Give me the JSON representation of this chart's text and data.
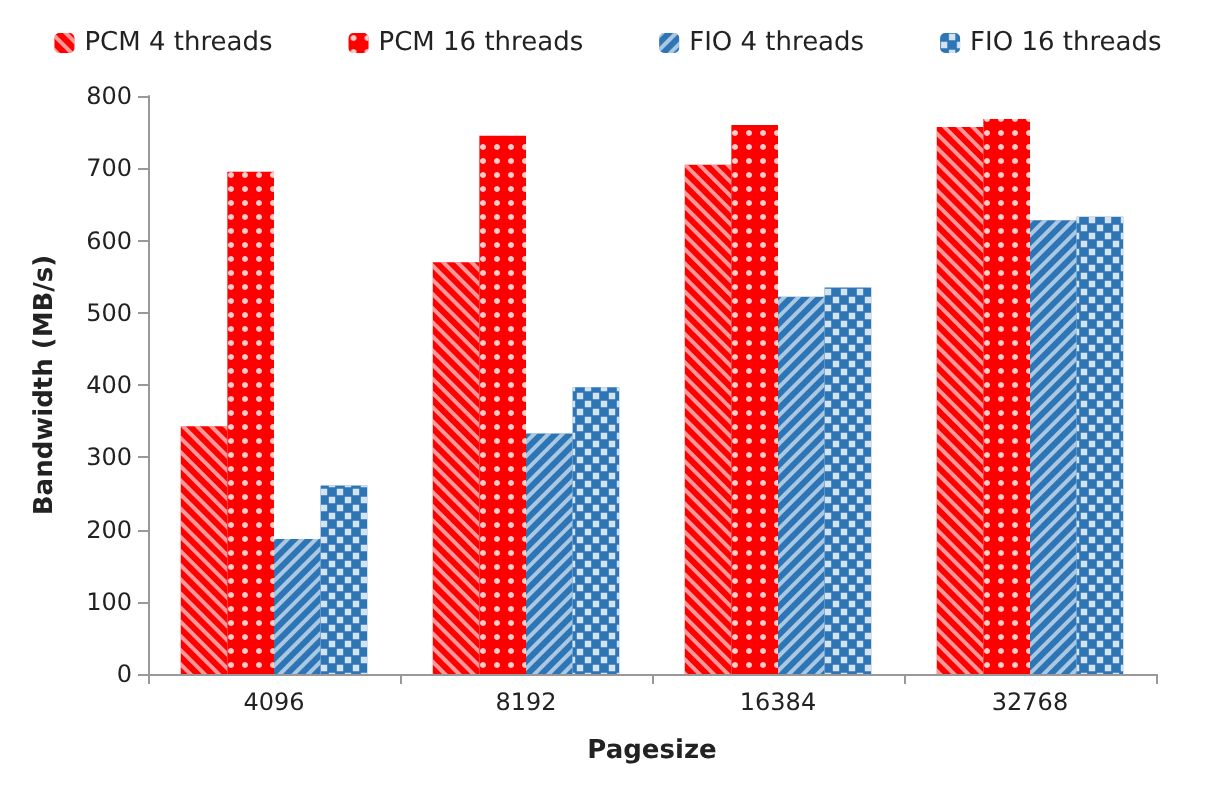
{
  "chart_data": {
    "type": "bar",
    "xlabel": "Pagesize",
    "ylabel": "Bandwidth (MB/s)",
    "categories": [
      "4096",
      "8192",
      "16384",
      "32768"
    ],
    "series": [
      {
        "name": "PCM 4 threads",
        "color": "#ff0000",
        "values": [
          343,
          570,
          705,
          757
        ]
      },
      {
        "name": "PCM 16 threads",
        "color": "#ff0000",
        "values": [
          695,
          745,
          760,
          768
        ]
      },
      {
        "name": "FIO 4 threads",
        "color": "#2e75b6",
        "values": [
          187,
          333,
          522,
          628
        ]
      },
      {
        "name": "FIO 16 threads",
        "color": "#2e75b6",
        "values": [
          261,
          397,
          535,
          633
        ]
      }
    ],
    "ylim": [
      0,
      800
    ],
    "yticks": [
      0,
      100,
      200,
      300,
      400,
      500,
      600,
      700,
      800
    ],
    "grid": false,
    "legend": "top"
  }
}
